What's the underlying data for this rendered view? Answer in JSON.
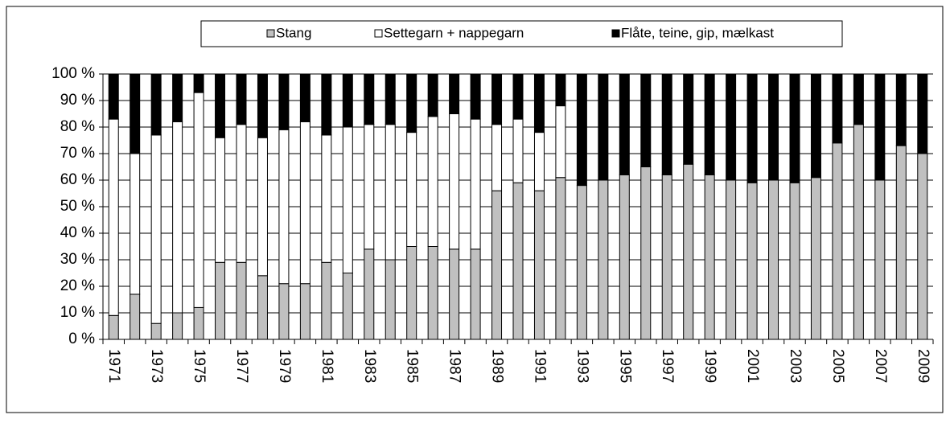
{
  "chart_data": {
    "type": "stacked_bar",
    "categories": [
      "1971",
      null,
      "1973",
      null,
      "1975",
      null,
      "1977",
      null,
      "1979",
      null,
      "1981",
      null,
      "1983",
      null,
      "1985",
      null,
      "1987",
      null,
      "1989",
      null,
      "1991",
      null,
      "1993",
      null,
      "1995",
      null,
      "1997",
      null,
      "1999",
      null,
      "2001",
      null,
      "2003",
      null,
      "2005",
      null,
      "2007",
      null,
      "2009"
    ],
    "series": [
      {
        "name": "Stang",
        "color": "#c0c0c0",
        "values": [
          9,
          17,
          6,
          10,
          12,
          29,
          29,
          24,
          21,
          21,
          29,
          25,
          34,
          30,
          35,
          35,
          34,
          34,
          56,
          59,
          56,
          61,
          58,
          60,
          62,
          65,
          62,
          66,
          62,
          60,
          59,
          60,
          59,
          61,
          74,
          81,
          60,
          73,
          70
        ]
      },
      {
        "name": "Settegarn + nappegarn",
        "color": "#ffffff",
        "values": [
          74,
          53,
          71,
          72,
          81,
          47,
          52,
          52,
          58,
          61,
          48,
          55,
          47,
          51,
          43,
          49,
          51,
          49,
          25,
          24,
          22,
          27,
          0,
          0,
          0,
          0,
          0,
          0,
          0,
          0,
          0,
          0,
          0,
          0,
          0,
          0,
          0,
          0,
          0
        ]
      },
      {
        "name": "Flåte, teine, gip, mælkast",
        "color": "#000000",
        "values": [
          17,
          30,
          23,
          18,
          7,
          24,
          19,
          24,
          21,
          18,
          23,
          20,
          19,
          19,
          22,
          16,
          15,
          17,
          19,
          17,
          22,
          12,
          42,
          40,
          38,
          35,
          38,
          34,
          38,
          40,
          41,
          40,
          41,
          39,
          26,
          19,
          40,
          27,
          30
        ]
      }
    ],
    "ylim": [
      0,
      100
    ],
    "yticks": [
      {
        "value": 0,
        "label": "0 %"
      },
      {
        "value": 10,
        "label": "10 %"
      },
      {
        "value": 20,
        "label": "20 %"
      },
      {
        "value": 30,
        "label": "30 %"
      },
      {
        "value": 40,
        "label": "40 %"
      },
      {
        "value": 50,
        "label": "50 %"
      },
      {
        "value": 60,
        "label": "60 %"
      },
      {
        "value": 70,
        "label": "70 %"
      },
      {
        "value": 80,
        "label": "80 %"
      },
      {
        "value": 90,
        "label": "90 %"
      },
      {
        "value": 100,
        "label": "100 %"
      }
    ],
    "grid": true,
    "legend": "top"
  }
}
